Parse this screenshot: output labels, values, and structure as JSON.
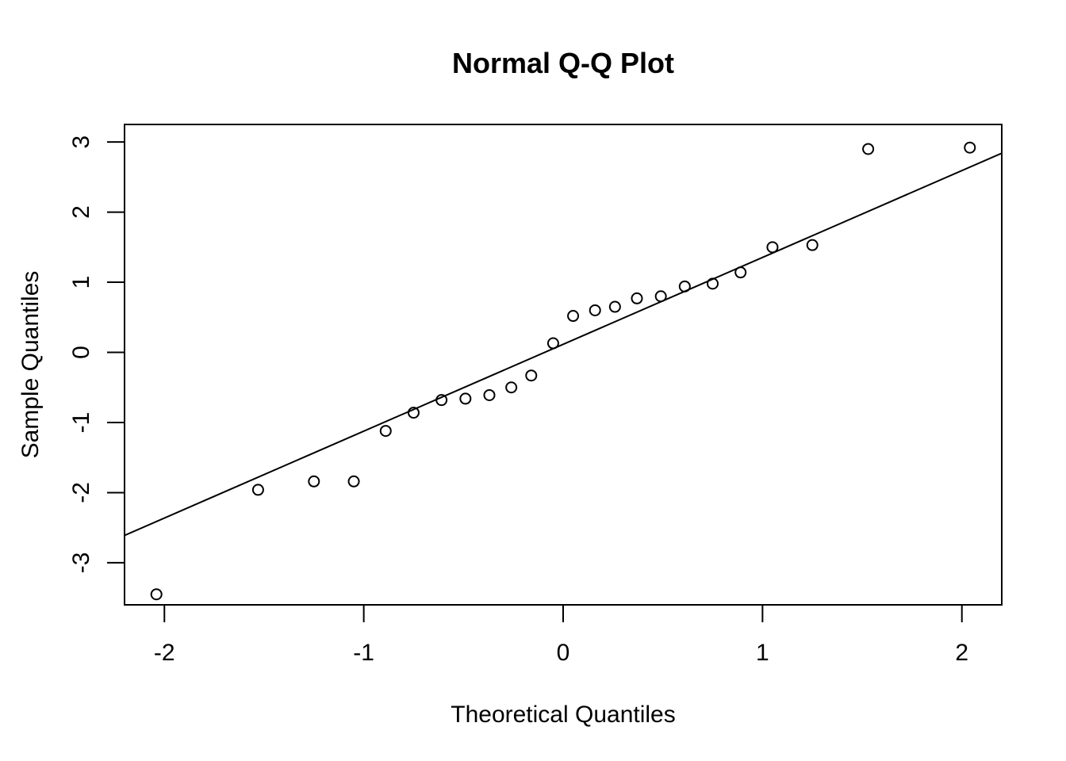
{
  "chart_data": {
    "type": "scatter",
    "title": "Normal Q-Q Plot",
    "xlabel": "Theoretical Quantiles",
    "ylabel": "Sample Quantiles",
    "xlim": [
      -2.2,
      2.2
    ],
    "ylim": [
      -3.6,
      3.25
    ],
    "x_ticks": [
      -2,
      -1,
      0,
      1,
      2
    ],
    "x_tick_labels": [
      "-2",
      "-1",
      "0",
      "1",
      "2"
    ],
    "y_ticks": [
      -3,
      -2,
      -1,
      0,
      1,
      2,
      3
    ],
    "y_tick_labels": [
      "-3",
      "-2",
      "-1",
      "0",
      "1",
      "2",
      "3"
    ],
    "grid": false,
    "legend": "none",
    "series": [
      {
        "type": "scatter",
        "marker": "open-circle",
        "x": [
          -2.04,
          -1.53,
          -1.25,
          -1.05,
          -0.89,
          -0.75,
          -0.61,
          -0.49,
          -0.37,
          -0.26,
          -0.16,
          -0.05,
          0.05,
          0.16,
          0.26,
          0.37,
          0.49,
          0.61,
          0.75,
          0.89,
          1.05,
          1.25,
          1.53,
          2.04
        ],
        "y": [
          -3.45,
          -1.96,
          -1.84,
          -1.84,
          -1.12,
          -0.86,
          -0.68,
          -0.66,
          -0.61,
          -0.5,
          -0.33,
          0.13,
          0.52,
          0.6,
          0.65,
          0.77,
          0.8,
          0.94,
          0.98,
          1.14,
          1.5,
          1.53,
          2.9,
          2.92
        ]
      },
      {
        "type": "line",
        "x": [
          -2.2,
          2.2
        ],
        "y": [
          -2.61,
          2.84
        ]
      }
    ]
  }
}
